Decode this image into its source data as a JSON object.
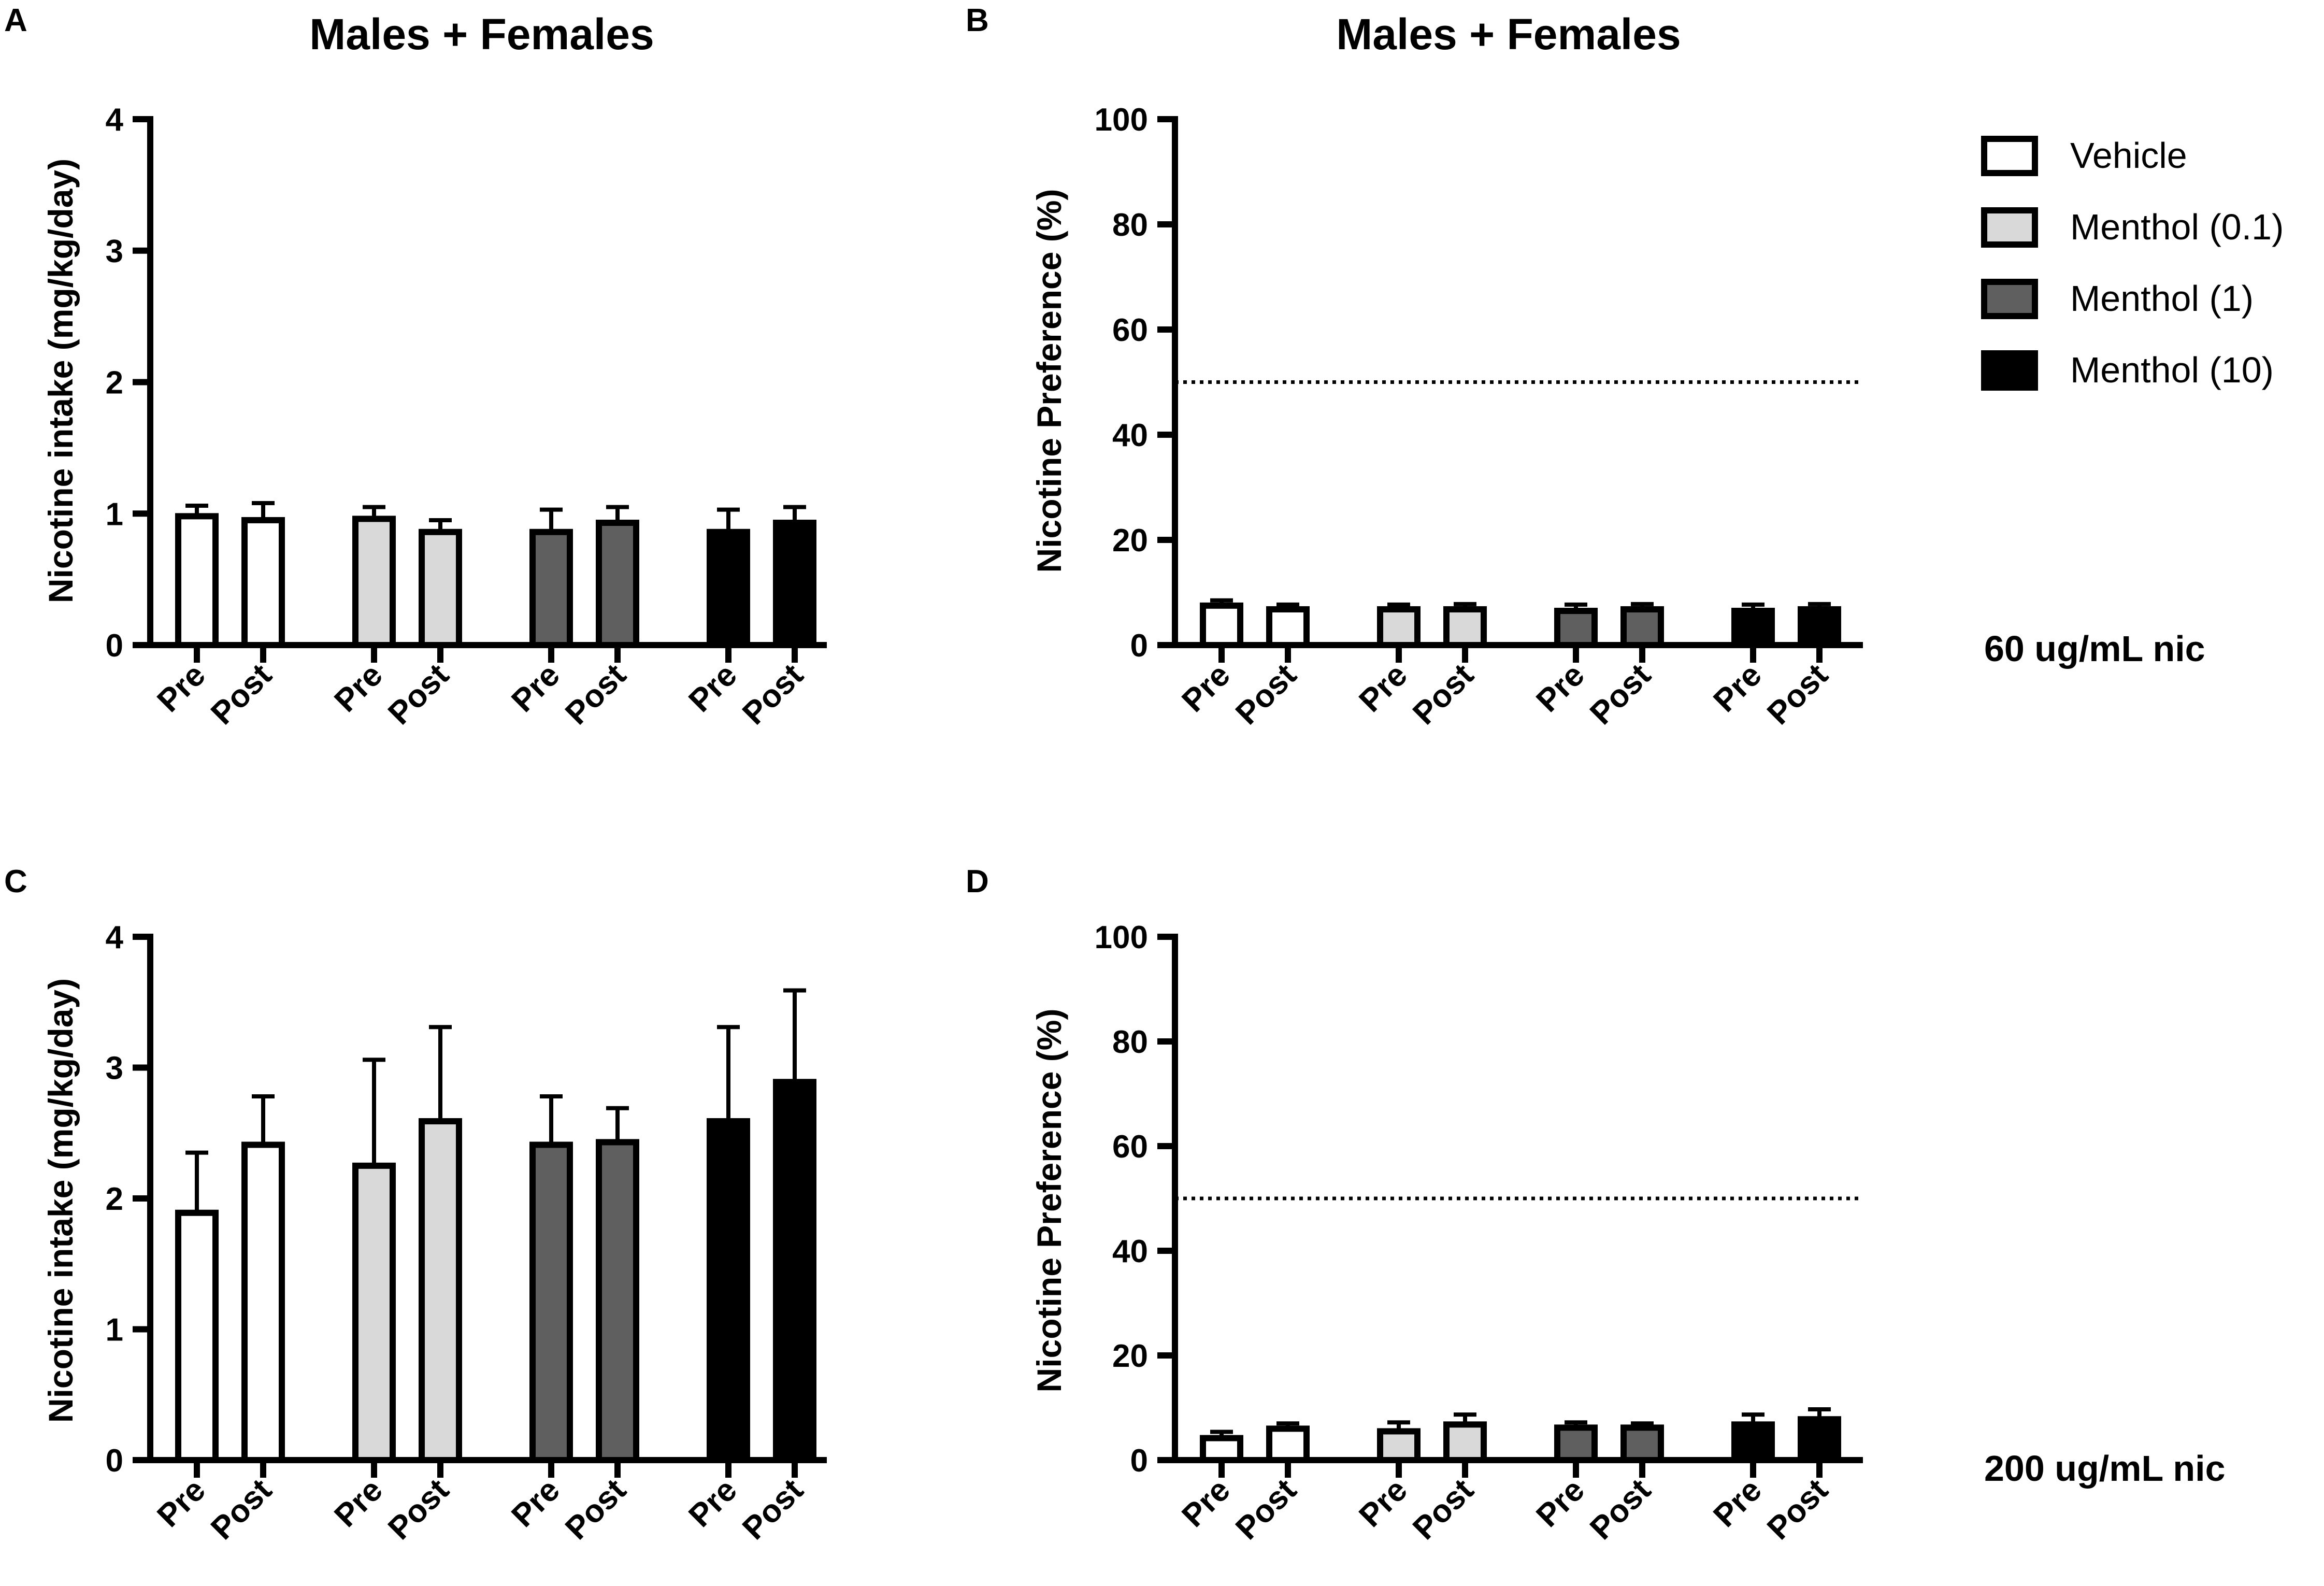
{
  "colors": {
    "Vehicle": "#ffffff",
    "Menthol (0.1)": "#d9d9d9",
    "Menthol (1)": "#5f5f5f",
    "Menthol (10)": "#000000",
    "stroke": "#000000"
  },
  "legend": {
    "entries": [
      "Vehicle",
      "Menthol (0.1)",
      "Menthol (1)",
      "Menthol (10)"
    ]
  },
  "concentrations": {
    "top": "60 ug/mL nic",
    "bottom": "200 ug/mL nic"
  },
  "chart_data": [
    {
      "panel": "A",
      "type": "bar",
      "title": "Males + Females",
      "ylabel": "Nicotine intake (mg/kg/day)",
      "xlabel": "",
      "ylim": [
        0,
        4
      ],
      "yticks": [
        0,
        1,
        2,
        3,
        4
      ],
      "groups": [
        "Vehicle",
        "Menthol (0.1)",
        "Menthol (1)",
        "Menthol (10)"
      ],
      "categories": [
        "Pre",
        "Post"
      ],
      "series": [
        {
          "name": "Vehicle",
          "values": [
            0.98,
            0.95
          ],
          "errors": [
            0.08,
            0.13
          ]
        },
        {
          "name": "Menthol (0.1)",
          "values": [
            0.96,
            0.86
          ],
          "errors": [
            0.09,
            0.09
          ]
        },
        {
          "name": "Menthol (1)",
          "values": [
            0.86,
            0.93
          ],
          "errors": [
            0.17,
            0.12
          ]
        },
        {
          "name": "Menthol (10)",
          "values": [
            0.86,
            0.93
          ],
          "errors": [
            0.17,
            0.12
          ]
        }
      ]
    },
    {
      "panel": "B",
      "type": "bar",
      "title": "Males + Females",
      "ylabel": "Nicotine Preference (%)",
      "xlabel": "",
      "ylim": [
        0,
        100
      ],
      "yticks": [
        0,
        20,
        40,
        60,
        80,
        100
      ],
      "reference_line": 50,
      "groups": [
        "Vehicle",
        "Menthol (0.1)",
        "Menthol (1)",
        "Menthol (10)"
      ],
      "categories": [
        "Pre",
        "Post"
      ],
      "series": [
        {
          "name": "Vehicle",
          "values": [
            7.5,
            6.8
          ],
          "errors": [
            1.0,
            0.9
          ]
        },
        {
          "name": "Menthol (0.1)",
          "values": [
            6.8,
            6.8
          ],
          "errors": [
            0.9,
            1.0
          ]
        },
        {
          "name": "Menthol (1)",
          "values": [
            6.5,
            6.8
          ],
          "errors": [
            1.2,
            1.0
          ]
        },
        {
          "name": "Menthol (10)",
          "values": [
            6.5,
            6.8
          ],
          "errors": [
            1.2,
            1.0
          ]
        }
      ]
    },
    {
      "panel": "C",
      "type": "bar",
      "title": "",
      "ylabel": "Nicotine intake (mg/kg/day)",
      "xlabel": "",
      "ylim": [
        0,
        4
      ],
      "yticks": [
        0,
        1,
        2,
        3,
        4
      ],
      "groups": [
        "Vehicle",
        "Menthol (0.1)",
        "Menthol (1)",
        "Menthol (10)"
      ],
      "categories": [
        "Pre",
        "Post"
      ],
      "series": [
        {
          "name": "Vehicle",
          "values": [
            1.89,
            2.41
          ],
          "errors": [
            0.46,
            0.37
          ]
        },
        {
          "name": "Menthol (0.1)",
          "values": [
            2.25,
            2.59
          ],
          "errors": [
            0.81,
            0.72
          ]
        },
        {
          "name": "Menthol (1)",
          "values": [
            2.41,
            2.43
          ],
          "errors": [
            0.37,
            0.26
          ]
        },
        {
          "name": "Menthol (10)",
          "values": [
            2.59,
            2.89
          ],
          "errors": [
            0.72,
            0.7
          ]
        }
      ]
    },
    {
      "panel": "D",
      "type": "bar",
      "title": "",
      "ylabel": "Nicotine Preference (%)",
      "xlabel": "",
      "ylim": [
        0,
        100
      ],
      "yticks": [
        0,
        20,
        40,
        60,
        80,
        100
      ],
      "reference_line": 50,
      "groups": [
        "Vehicle",
        "Menthol (0.1)",
        "Menthol (1)",
        "Menthol (10)"
      ],
      "categories": [
        "Pre",
        "Post"
      ],
      "series": [
        {
          "name": "Vehicle",
          "values": [
            4.2,
            6.0
          ],
          "errors": [
            1.2,
            1.0
          ]
        },
        {
          "name": "Menthol (0.1)",
          "values": [
            5.5,
            6.8
          ],
          "errors": [
            1.7,
            1.9
          ]
        },
        {
          "name": "Menthol (1)",
          "values": [
            6.2,
            6.2
          ],
          "errors": [
            1.0,
            0.8
          ]
        },
        {
          "name": "Menthol (10)",
          "values": [
            6.8,
            7.8
          ],
          "errors": [
            1.9,
            1.9
          ]
        }
      ]
    }
  ]
}
